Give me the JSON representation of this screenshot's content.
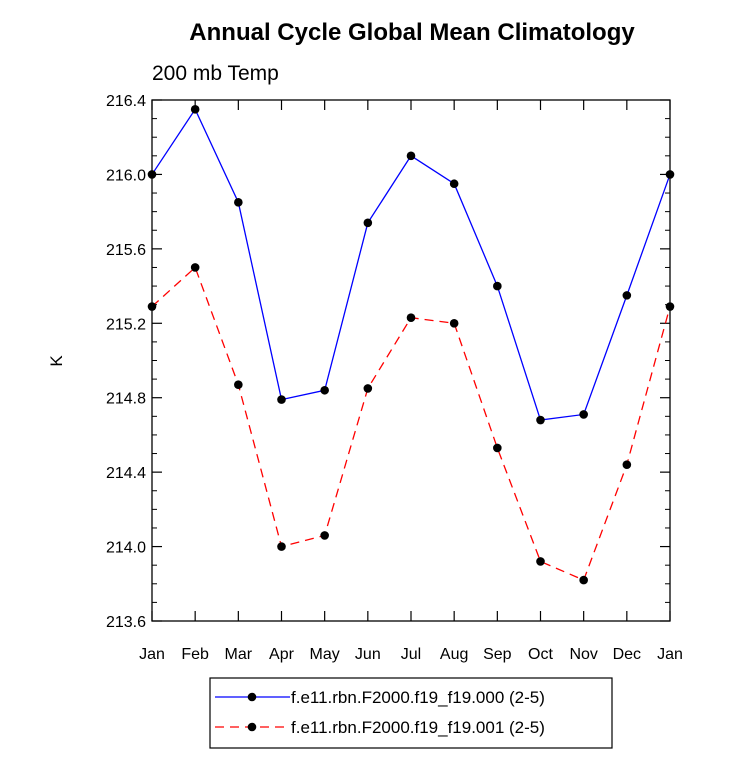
{
  "chart_data": {
    "type": "line",
    "title": "Annual Cycle Global Mean Climatology",
    "subtitle": "200 mb Temp",
    "xlabel": "",
    "ylabel": "K",
    "ylim": [
      213.6,
      216.4
    ],
    "yticks": [
      "213.6",
      "214.0",
      "214.4",
      "214.8",
      "215.2",
      "215.6",
      "216.0",
      "216.4"
    ],
    "ytick_values": [
      213.6,
      214.0,
      214.4,
      214.8,
      215.2,
      215.6,
      216.0,
      216.4
    ],
    "categories": [
      "Jan",
      "Feb",
      "Mar",
      "Apr",
      "May",
      "Jun",
      "Jul",
      "Aug",
      "Sep",
      "Oct",
      "Nov",
      "Dec",
      "Jan"
    ],
    "grid": false,
    "legend_position": "bottom",
    "series": [
      {
        "name": "f.e11.rbn.F2000.f19_f19.000 (2-5)",
        "color": "#0000ff",
        "style": "solid",
        "values": [
          216.0,
          216.35,
          215.85,
          214.79,
          214.84,
          215.74,
          216.1,
          215.95,
          215.4,
          214.68,
          214.71,
          215.35,
          216.0
        ]
      },
      {
        "name": "f.e11.rbn.F2000.f19_f19.001 (2-5)",
        "color": "#ff0000",
        "style": "dashed",
        "values": [
          215.29,
          215.5,
          214.87,
          214.0,
          214.06,
          214.85,
          215.23,
          215.2,
          214.53,
          213.92,
          213.82,
          214.44,
          215.29
        ]
      }
    ]
  }
}
